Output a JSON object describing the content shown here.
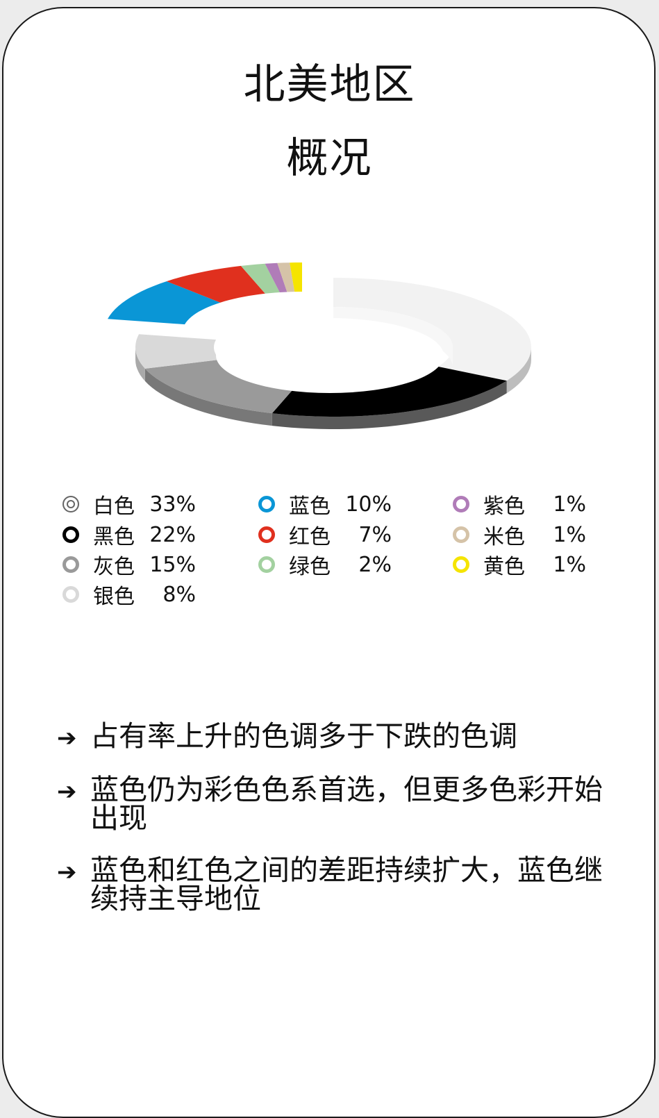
{
  "header": {
    "title": "北美地区",
    "subtitle": "概况"
  },
  "chart_data": {
    "type": "pie",
    "title": "北美地区 概况",
    "slices": [
      {
        "label": "白色",
        "value": 33,
        "display": "33%",
        "color": "#f2f2f2"
      },
      {
        "label": "黑色",
        "value": 22,
        "display": "22%",
        "color": "#000000"
      },
      {
        "label": "灰色",
        "value": 15,
        "display": "15%",
        "color": "#9a9a9a"
      },
      {
        "label": "银色",
        "value": 8,
        "display": "8%",
        "color": "#d9d9d9"
      },
      {
        "label": "蓝色",
        "value": 10,
        "display": "10%",
        "color": "#0a96d6"
      },
      {
        "label": "红色",
        "value": 7,
        "display": "7%",
        "color": "#e0301e"
      },
      {
        "label": "绿色",
        "value": 2,
        "display": "2%",
        "color": "#a3d1a0"
      },
      {
        "label": "紫色",
        "value": 1,
        "display": "1%",
        "color": "#b07cb8"
      },
      {
        "label": "米色",
        "value": 1,
        "display": "1%",
        "color": "#d5c3a8"
      },
      {
        "label": "黄色",
        "value": 1,
        "display": "1%",
        "color": "#f5e400"
      }
    ],
    "exploded": [
      "蓝色",
      "红色",
      "绿色",
      "紫色",
      "米色",
      "黄色"
    ]
  },
  "bullets": [
    "占有率上升的色调多于下跌的色调",
    "蓝色仍为彩色色系首选，但更多色彩开始出现",
    "蓝色和红色之间的差距持续扩大，蓝色继续持主导地位"
  ],
  "arrow_glyph": "➔"
}
